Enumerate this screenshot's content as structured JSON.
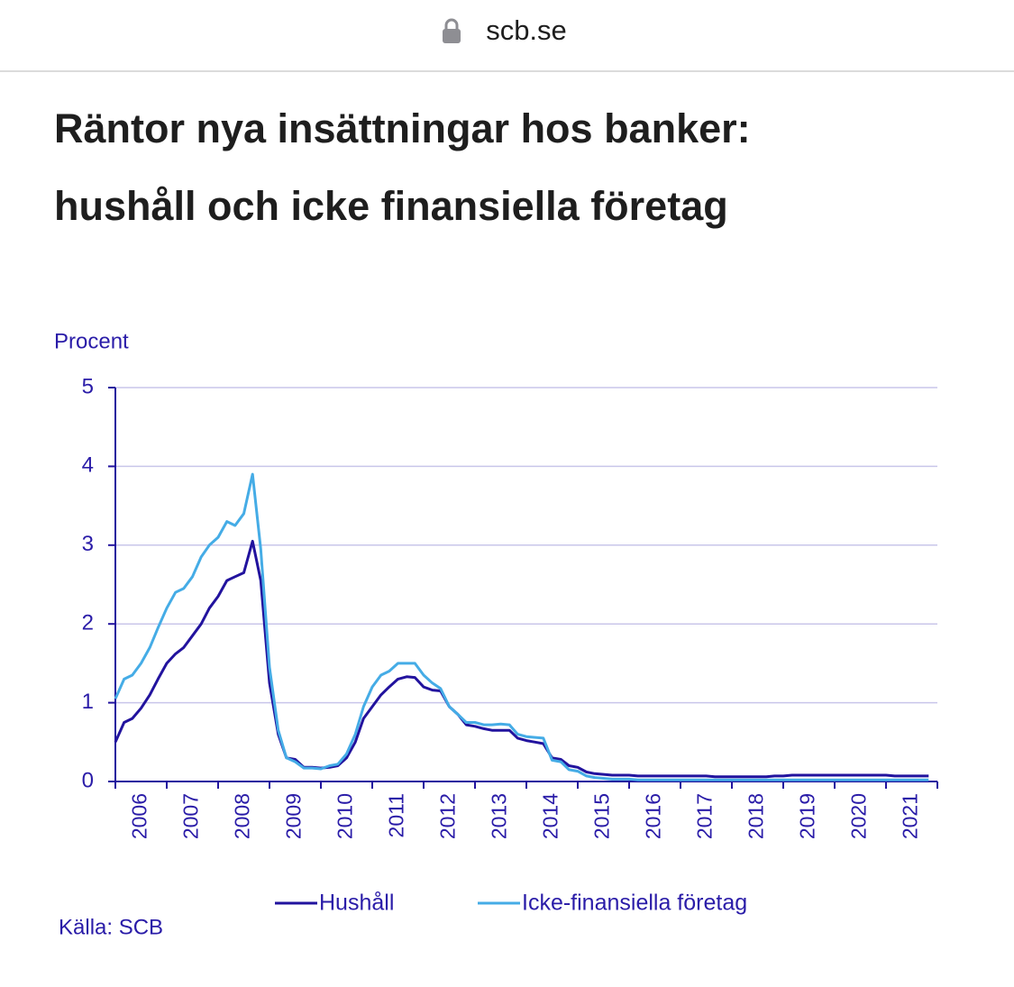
{
  "browser": {
    "url": "scb.se"
  },
  "chart_data": {
    "type": "line",
    "title": "Räntor nya insättningar hos banker: hushåll och icke finansiella företag",
    "ylabel": "Procent",
    "source": "Källa: SCB",
    "ylim": [
      0,
      5
    ],
    "yticks": [
      0,
      1,
      2,
      3,
      4,
      5
    ],
    "xlim": [
      2006,
      2022
    ],
    "xticks": [
      {
        "value": 2006.5,
        "label": "2006"
      },
      {
        "value": 2007.5,
        "label": "2007"
      },
      {
        "value": 2008.5,
        "label": "2008"
      },
      {
        "value": 2009.5,
        "label": "2009"
      },
      {
        "value": 2010.5,
        "label": "2010"
      },
      {
        "value": 2011.5,
        "label": "2011"
      },
      {
        "value": 2012.5,
        "label": "2012"
      },
      {
        "value": 2013.5,
        "label": "2013"
      },
      {
        "value": 2014.5,
        "label": "2014"
      },
      {
        "value": 2015.5,
        "label": "2015"
      },
      {
        "value": 2016.5,
        "label": "2016"
      },
      {
        "value": 2017.5,
        "label": "2017"
      },
      {
        "value": 2018.5,
        "label": "2018"
      },
      {
        "value": 2019.5,
        "label": "2019"
      },
      {
        "value": 2020.5,
        "label": "2020"
      },
      {
        "value": 2021.5,
        "label": "2021"
      }
    ],
    "grid": true,
    "legend": "bottom",
    "x": [
      2006,
      2006.17,
      2006.33,
      2006.5,
      2006.67,
      2006.83,
      2007,
      2007.17,
      2007.33,
      2007.5,
      2007.67,
      2007.83,
      2008,
      2008.17,
      2008.33,
      2008.5,
      2008.67,
      2008.83,
      2009,
      2009.17,
      2009.33,
      2009.5,
      2009.67,
      2009.83,
      2010,
      2010.17,
      2010.33,
      2010.5,
      2010.67,
      2010.83,
      2011,
      2011.17,
      2011.33,
      2011.5,
      2011.67,
      2011.83,
      2012,
      2012.17,
      2012.33,
      2012.5,
      2012.67,
      2012.83,
      2013,
      2013.17,
      2013.33,
      2013.5,
      2013.67,
      2013.83,
      2014,
      2014.17,
      2014.33,
      2014.5,
      2014.67,
      2014.83,
      2015,
      2015.17,
      2015.33,
      2015.5,
      2015.67,
      2015.83,
      2016,
      2016.17,
      2016.33,
      2016.5,
      2016.67,
      2016.83,
      2017,
      2017.17,
      2017.33,
      2017.5,
      2017.67,
      2017.83,
      2018,
      2018.17,
      2018.33,
      2018.5,
      2018.67,
      2018.83,
      2019,
      2019.17,
      2019.33,
      2019.5,
      2019.67,
      2019.83,
      2020,
      2020.17,
      2020.33,
      2020.5,
      2020.67,
      2020.83,
      2021,
      2021.17,
      2021.33,
      2021.5,
      2021.67,
      2021.83
    ],
    "series": [
      {
        "name": "Hushåll",
        "color": "#22139e",
        "values": [
          0.5,
          0.75,
          0.8,
          0.93,
          1.1,
          1.3,
          1.5,
          1.62,
          1.7,
          1.85,
          2.0,
          2.2,
          2.35,
          2.55,
          2.6,
          2.65,
          3.05,
          2.55,
          1.25,
          0.6,
          0.3,
          0.28,
          0.18,
          0.18,
          0.17,
          0.18,
          0.2,
          0.3,
          0.5,
          0.8,
          0.95,
          1.1,
          1.2,
          1.3,
          1.33,
          1.32,
          1.2,
          1.16,
          1.15,
          0.95,
          0.85,
          0.72,
          0.7,
          0.67,
          0.65,
          0.65,
          0.65,
          0.55,
          0.52,
          0.5,
          0.48,
          0.3,
          0.28,
          0.2,
          0.18,
          0.12,
          0.1,
          0.09,
          0.08,
          0.08,
          0.08,
          0.07,
          0.07,
          0.07,
          0.07,
          0.07,
          0.07,
          0.07,
          0.07,
          0.07,
          0.06,
          0.06,
          0.06,
          0.06,
          0.06,
          0.06,
          0.06,
          0.07,
          0.07,
          0.08,
          0.08,
          0.08,
          0.08,
          0.08,
          0.08,
          0.08,
          0.08,
          0.08,
          0.08,
          0.08,
          0.08,
          0.07,
          0.07,
          0.07,
          0.07,
          0.07
        ]
      },
      {
        "name": "Icke-finansiella företag",
        "color": "#45ace6",
        "values": [
          1.05,
          1.3,
          1.35,
          1.5,
          1.7,
          1.95,
          2.2,
          2.4,
          2.45,
          2.6,
          2.85,
          3.0,
          3.1,
          3.3,
          3.25,
          3.4,
          3.9,
          2.95,
          1.45,
          0.65,
          0.3,
          0.25,
          0.17,
          0.17,
          0.16,
          0.2,
          0.22,
          0.35,
          0.6,
          0.95,
          1.2,
          1.35,
          1.4,
          1.5,
          1.5,
          1.5,
          1.35,
          1.25,
          1.18,
          0.95,
          0.85,
          0.75,
          0.75,
          0.72,
          0.72,
          0.73,
          0.72,
          0.6,
          0.57,
          0.56,
          0.55,
          0.27,
          0.25,
          0.15,
          0.13,
          0.07,
          0.05,
          0.04,
          0.03,
          0.03,
          0.03,
          0.02,
          0.02,
          0.02,
          0.02,
          0.02,
          0.02,
          0.02,
          0.02,
          0.02,
          0.02,
          0.02,
          0.02,
          0.02,
          0.02,
          0.02,
          0.02,
          0.02,
          0.02,
          0.02,
          0.02,
          0.02,
          0.02,
          0.02,
          0.02,
          0.02,
          0.02,
          0.02,
          0.02,
          0.02,
          0.02,
          0.02,
          0.02,
          0.02,
          0.02,
          0.02
        ]
      }
    ]
  }
}
